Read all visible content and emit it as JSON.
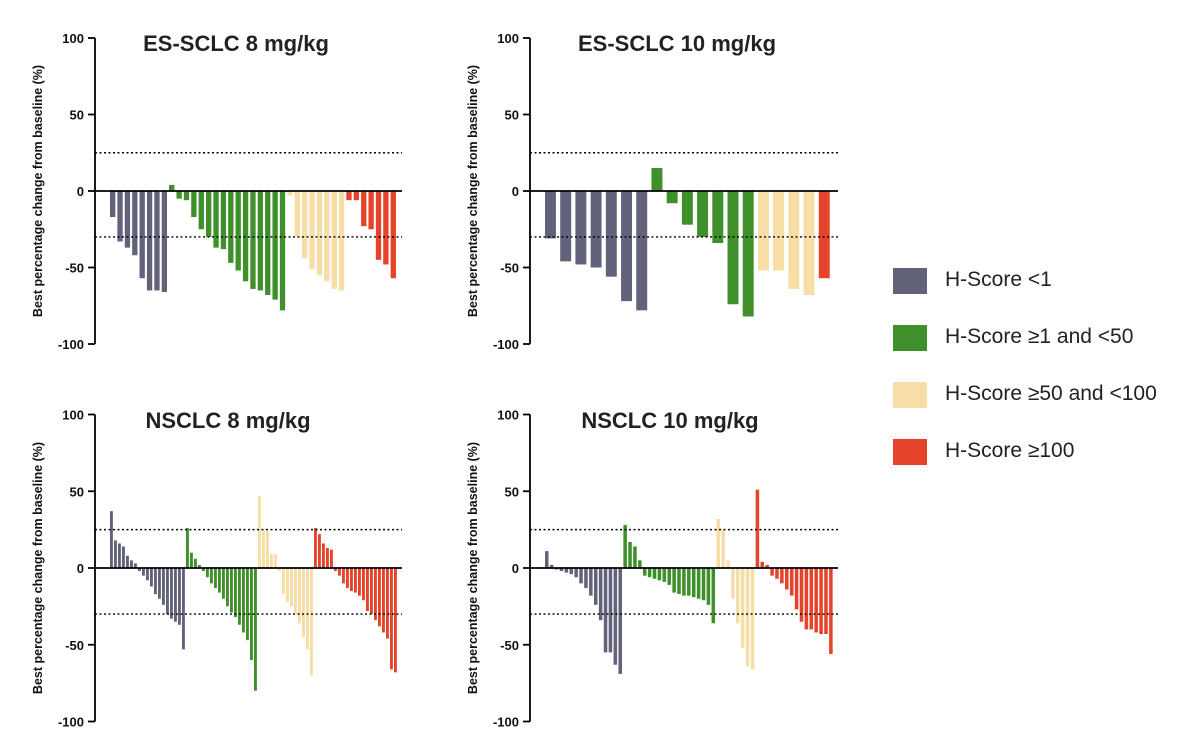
{
  "colors": {
    "hs_lt1": "#62627a",
    "hs_1_50": "#3f8f2a",
    "hs_50_100": "#f7dda6",
    "hs_ge100": "#e5432a"
  },
  "legend": [
    {
      "label": "H-Score <1",
      "color_key": "hs_lt1"
    },
    {
      "label": "H-Score ≥1 and <50",
      "color_key": "hs_1_50"
    },
    {
      "label": "H-Score ≥50 and <100",
      "color_key": "hs_50_100"
    },
    {
      "label": "H-Score ≥100",
      "color_key": "hs_ge100"
    }
  ],
  "chart_data": [
    {
      "type": "bar",
      "title": "ES-SCLC 8 mg/kg",
      "ylabel": "Best percentage change from baseline (%)",
      "ylim": [
        -100,
        100
      ],
      "yticks": [
        100,
        50,
        0,
        -50,
        -100
      ],
      "reference_lines": [
        25,
        -30
      ],
      "series": [
        {
          "name": "H-Score <1",
          "color_key": "hs_lt1",
          "values": [
            -17,
            -33,
            -37,
            -42,
            -57,
            -65,
            -65,
            -66
          ]
        },
        {
          "name": "H-Score ≥1 and <50",
          "color_key": "hs_1_50",
          "values": [
            4,
            -5,
            -6,
            -17,
            -25,
            -30,
            -37,
            -38,
            -47,
            -52,
            -59,
            -64,
            -65,
            -68,
            -71,
            -78
          ]
        },
        {
          "name": "H-Score ≥50 and <100",
          "color_key": "hs_50_100",
          "values": [
            -3,
            -30,
            -44,
            -51,
            -55,
            -59,
            -64,
            -65
          ]
        },
        {
          "name": "H-Score ≥100",
          "color_key": "hs_ge100",
          "values": [
            -6,
            -6,
            -23,
            -25,
            -45,
            -48,
            -57
          ]
        }
      ]
    },
    {
      "type": "bar",
      "title": "ES-SCLC 10 mg/kg",
      "ylabel": "Best percentage change from baseline (%)",
      "ylim": [
        -100,
        100
      ],
      "yticks": [
        100,
        50,
        0,
        -50,
        -100
      ],
      "reference_lines": [
        25,
        -30
      ],
      "series": [
        {
          "name": "H-Score <1",
          "color_key": "hs_lt1",
          "values": [
            -31,
            -46,
            -48,
            -50,
            -56,
            -72,
            -78
          ]
        },
        {
          "name": "H-Score ≥1 and <50",
          "color_key": "hs_1_50",
          "values": [
            15,
            -8,
            -22,
            -30,
            -34,
            -74,
            -82
          ]
        },
        {
          "name": "H-Score ≥50 and <100",
          "color_key": "hs_50_100",
          "values": [
            -52,
            -52,
            -64,
            -68
          ]
        },
        {
          "name": "H-Score ≥100",
          "color_key": "hs_ge100",
          "values": [
            -57
          ]
        }
      ]
    },
    {
      "type": "bar",
      "title": "NSCLC 8 mg/kg",
      "ylabel": "Best percentage change from baseline (%)",
      "ylim": [
        -100,
        100
      ],
      "yticks": [
        100,
        50,
        0,
        -50,
        -100
      ],
      "reference_lines": [
        25,
        -30
      ],
      "series": [
        {
          "name": "H-Score <1",
          "color_key": "hs_lt1",
          "values": [
            37,
            18,
            16,
            14,
            8,
            5,
            3,
            -2,
            -5,
            -8,
            -12,
            -17,
            -20,
            -24,
            -30,
            -33,
            -35,
            -37,
            -53
          ]
        },
        {
          "name": "H-Score ≥1 and <50",
          "color_key": "hs_1_50",
          "values": [
            26,
            10,
            6,
            2,
            -2,
            -6,
            -10,
            -13,
            -16,
            -20,
            -25,
            -29,
            -32,
            -37,
            -42,
            -47,
            -60,
            -80
          ]
        },
        {
          "name": "H-Score ≥50 and <100",
          "color_key": "hs_50_100",
          "values": [
            47,
            24,
            24,
            9,
            9,
            -2,
            -17,
            -22,
            -25,
            -30,
            -36,
            -45,
            -53,
            -70
          ]
        },
        {
          "name": "H-Score ≥100",
          "color_key": "hs_ge100",
          "values": [
            26,
            22,
            16,
            13,
            12,
            -2,
            -5,
            -10,
            -13,
            -15,
            -16,
            -18,
            -21,
            -28,
            -30,
            -34,
            -38,
            -42,
            -46,
            -66,
            -68
          ]
        }
      ]
    },
    {
      "type": "bar",
      "title": "NSCLC 10 mg/kg",
      "ylabel": "Best percentage change from baseline (%)",
      "ylim": [
        -100,
        100
      ],
      "yticks": [
        100,
        50,
        0,
        -50,
        -100
      ],
      "reference_lines": [
        25,
        -30
      ],
      "series": [
        {
          "name": "H-Score <1",
          "color_key": "hs_lt1",
          "values": [
            11,
            2,
            -1,
            -2,
            -3,
            -4,
            -6,
            -10,
            -13,
            -18,
            -24,
            -34,
            -55,
            -55,
            -63,
            -69
          ]
        },
        {
          "name": "H-Score ≥1 and <50",
          "color_key": "hs_1_50",
          "values": [
            28,
            17,
            14,
            5,
            -5,
            -6,
            -7,
            -8,
            -9,
            -11,
            -16,
            -17,
            -18,
            -18,
            -19,
            -20,
            -21,
            -24,
            -36
          ]
        },
        {
          "name": "H-Score ≥50 and <100",
          "color_key": "hs_50_100",
          "values": [
            32,
            25,
            5,
            -20,
            -36,
            -52,
            -64,
            -66
          ]
        },
        {
          "name": "H-Score ≥100",
          "color_key": "hs_ge100",
          "values": [
            51,
            4,
            2,
            -5,
            -7,
            -10,
            -14,
            -18,
            -27,
            -35,
            -40,
            -40,
            -42,
            -43,
            -43,
            -56
          ]
        }
      ]
    }
  ]
}
